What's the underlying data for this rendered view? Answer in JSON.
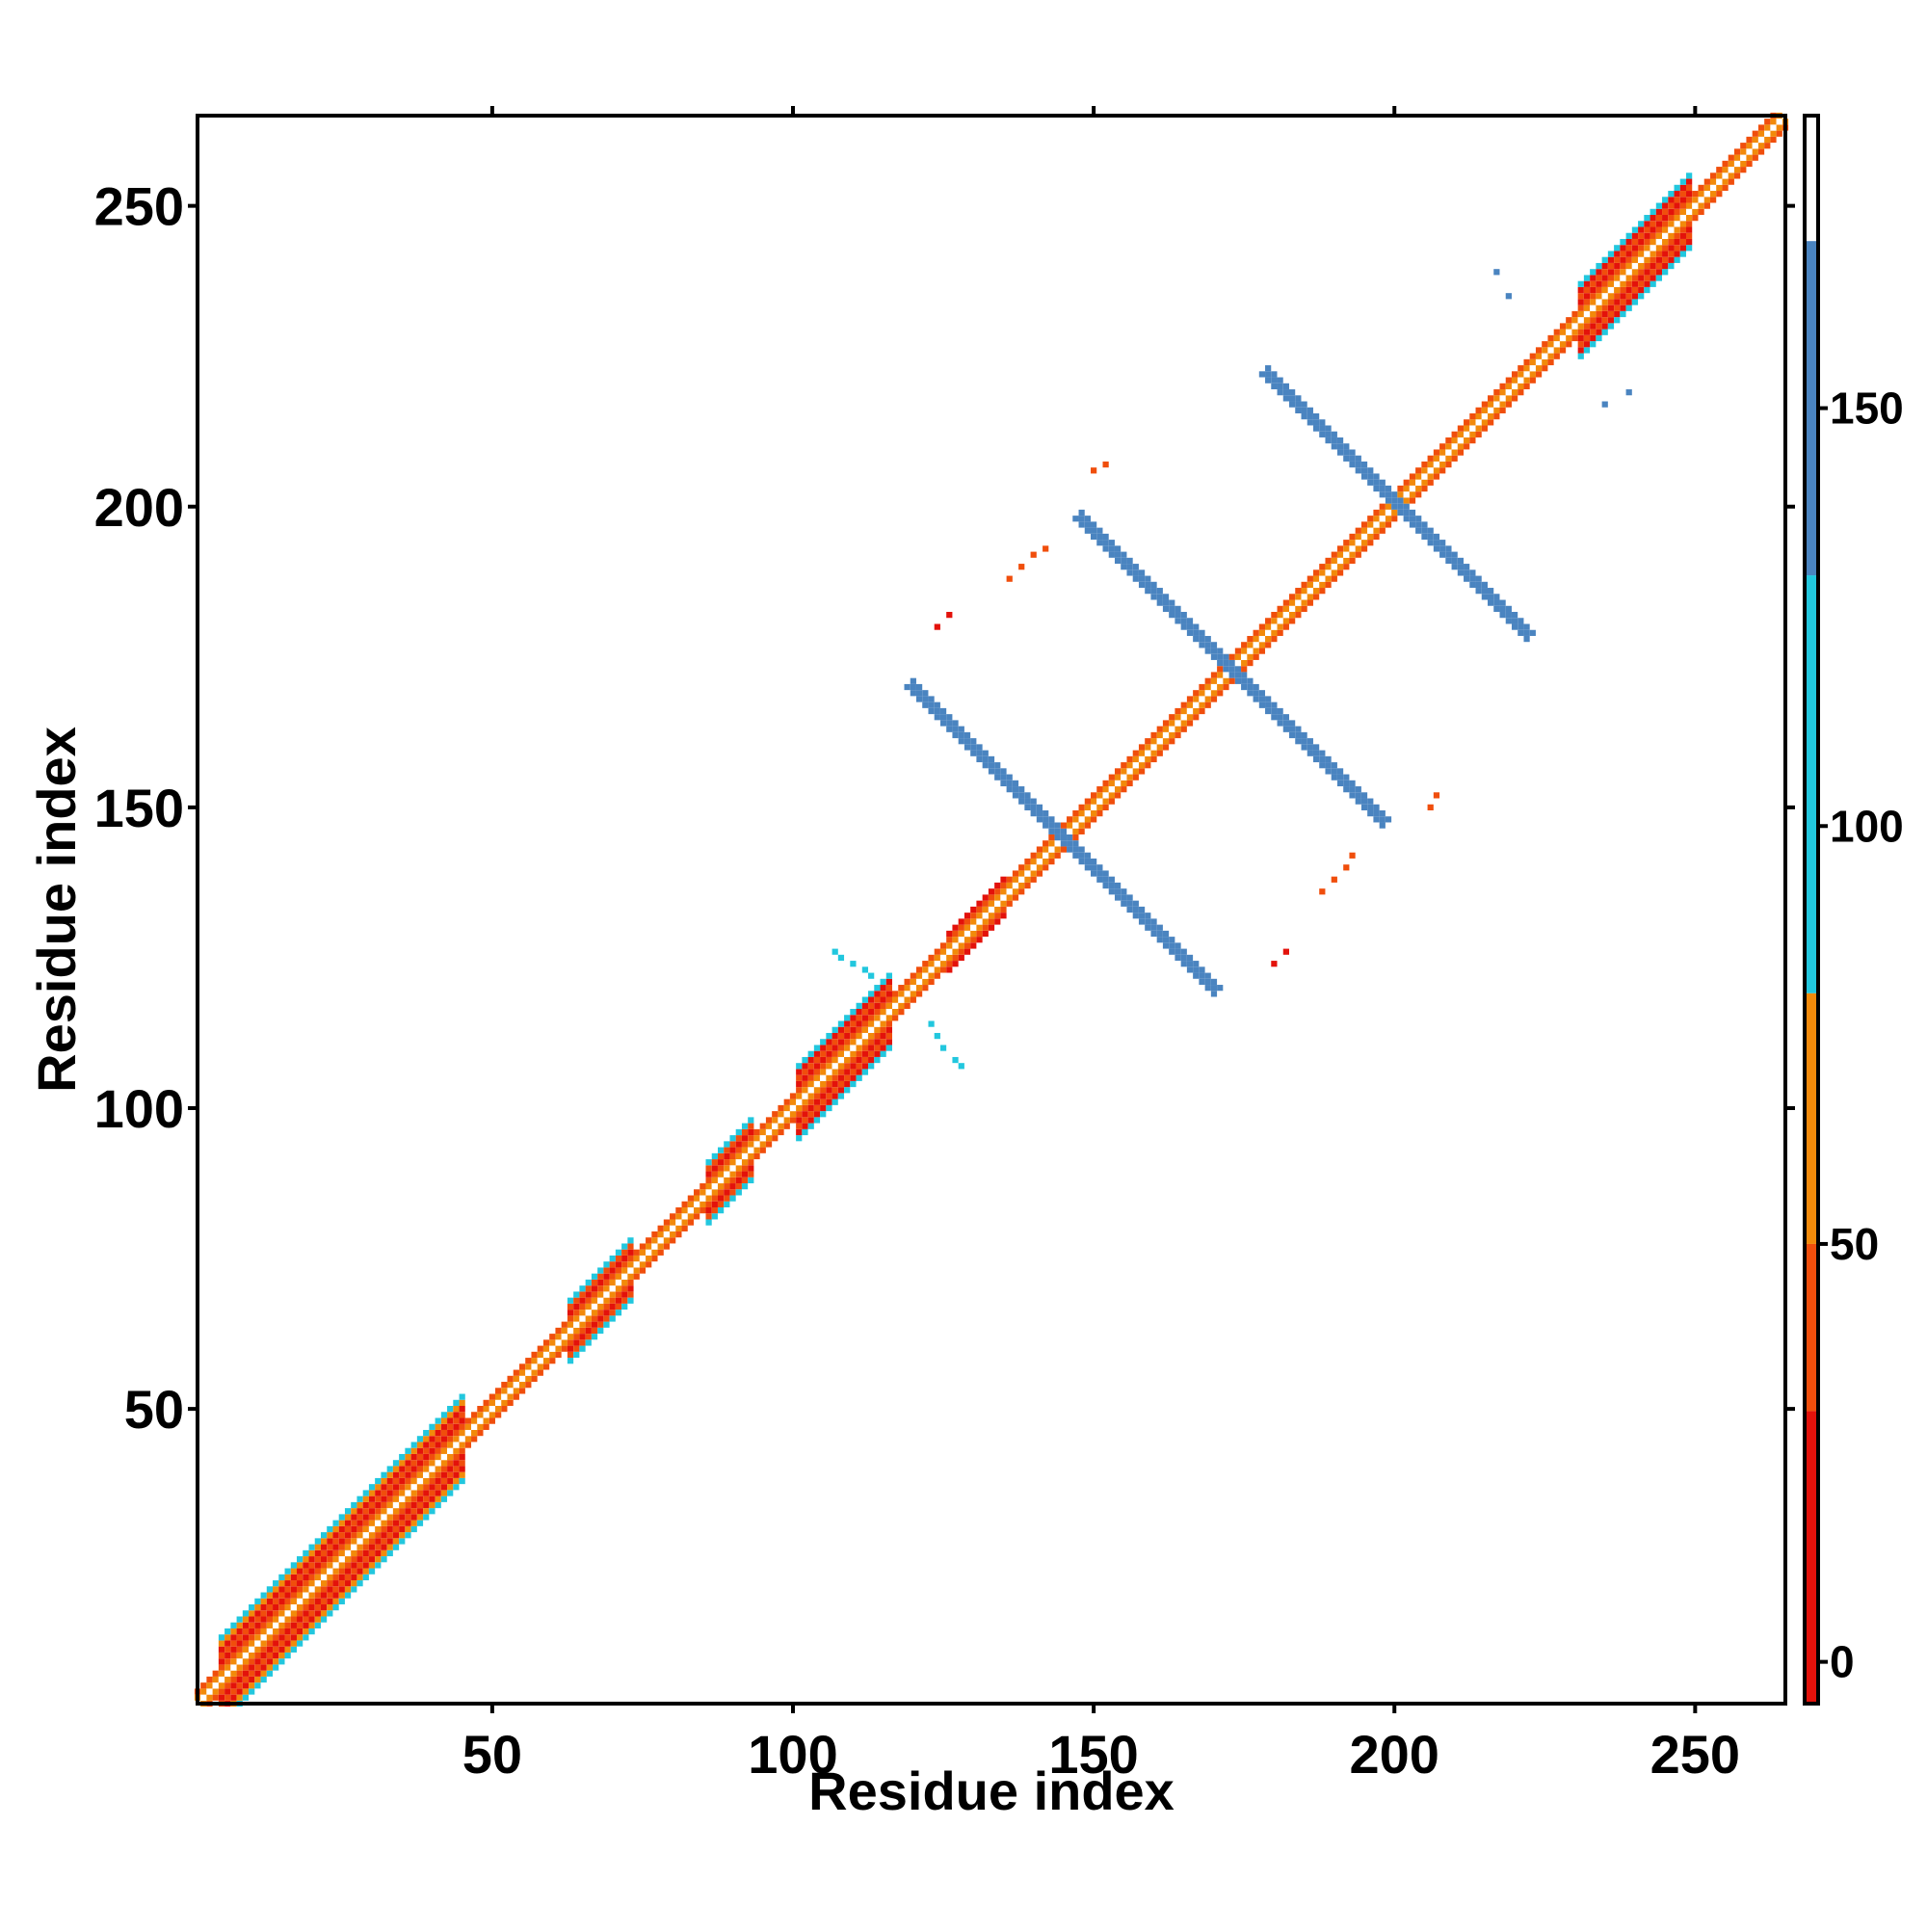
{
  "chart_data": {
    "type": "heatmap",
    "title": "",
    "xlabel": "Residue index",
    "ylabel": "Residue index",
    "xlim": [
      1,
      265
    ],
    "ylim": [
      1,
      265
    ],
    "x_ticks": [
      50,
      100,
      150,
      200,
      250
    ],
    "y_ticks": [
      50,
      100,
      150,
      200,
      250
    ],
    "grid": false,
    "colorbar": {
      "range": [
        -5,
        185
      ],
      "ticks": [
        0,
        50,
        100,
        150
      ],
      "bands": [
        {
          "from": -5,
          "to": 30,
          "color": "#e3120b"
        },
        {
          "from": 30,
          "to": 50,
          "color": "#f04e0c"
        },
        {
          "from": 50,
          "to": 80,
          "color": "#f28a0a"
        },
        {
          "from": 80,
          "to": 130,
          "color": "#22c7de"
        },
        {
          "from": 130,
          "to": 170,
          "color": "#4a84c0"
        },
        {
          "from": 170,
          "to": 185,
          "color": "#ffffff"
        }
      ]
    },
    "diagonal_band": {
      "color_by_offset": [
        {
          "offset": 0,
          "value": 175
        },
        {
          "offset": 1,
          "value": 65
        },
        {
          "offset": 2,
          "value": 40
        },
        {
          "offset": 3,
          "value": 20
        },
        {
          "offset": 4,
          "value": 100
        }
      ],
      "helix_segments": [
        {
          "from": 5,
          "to": 45,
          "halfwidth": 7
        },
        {
          "from": 63,
          "to": 73,
          "halfwidth": 5
        },
        {
          "from": 86,
          "to": 93,
          "halfwidth": 5
        },
        {
          "from": 101,
          "to": 116,
          "halfwidth": 6
        },
        {
          "from": 126,
          "to": 135,
          "halfwidth": 3
        },
        {
          "from": 231,
          "to": 249,
          "halfwidth": 6
        }
      ]
    },
    "antiparallel_strips": [
      {
        "x1": 120,
        "y1": 170,
        "x2": 170,
        "y2": 120,
        "value": 140
      },
      {
        "x1": 148,
        "y1": 198,
        "x2": 198,
        "y2": 148,
        "value": 140
      },
      {
        "x1": 179,
        "y1": 222,
        "x2": 222,
        "y2": 179,
        "value": 140
      }
    ],
    "scattered_contacts": [
      {
        "x": 108,
        "y": 125,
        "value": 100
      },
      {
        "x": 107,
        "y": 126,
        "value": 100
      },
      {
        "x": 110,
        "y": 124,
        "value": 100
      },
      {
        "x": 112,
        "y": 123,
        "value": 100
      },
      {
        "x": 113,
        "y": 122,
        "value": 100
      },
      {
        "x": 123,
        "y": 114,
        "value": 100
      },
      {
        "x": 124,
        "y": 112,
        "value": 100
      },
      {
        "x": 125,
        "y": 110,
        "value": 100
      },
      {
        "x": 127,
        "y": 108,
        "value": 100
      },
      {
        "x": 128,
        "y": 107,
        "value": 100
      },
      {
        "x": 136,
        "y": 188,
        "value": 40
      },
      {
        "x": 138,
        "y": 190,
        "value": 40
      },
      {
        "x": 140,
        "y": 192,
        "value": 40
      },
      {
        "x": 142,
        "y": 193,
        "value": 40
      },
      {
        "x": 150,
        "y": 206,
        "value": 40
      },
      {
        "x": 152,
        "y": 207,
        "value": 40
      },
      {
        "x": 124,
        "y": 180,
        "value": 20
      },
      {
        "x": 126,
        "y": 182,
        "value": 20
      },
      {
        "x": 188,
        "y": 136,
        "value": 40
      },
      {
        "x": 190,
        "y": 138,
        "value": 40
      },
      {
        "x": 192,
        "y": 140,
        "value": 40
      },
      {
        "x": 193,
        "y": 142,
        "value": 40
      },
      {
        "x": 206,
        "y": 150,
        "value": 40
      },
      {
        "x": 207,
        "y": 152,
        "value": 40
      },
      {
        "x": 180,
        "y": 124,
        "value": 20
      },
      {
        "x": 182,
        "y": 126,
        "value": 20
      },
      {
        "x": 217,
        "y": 239,
        "value": 140
      },
      {
        "x": 219,
        "y": 235,
        "value": 140
      },
      {
        "x": 235,
        "y": 217,
        "value": 140
      },
      {
        "x": 239,
        "y": 219,
        "value": 140
      }
    ]
  }
}
